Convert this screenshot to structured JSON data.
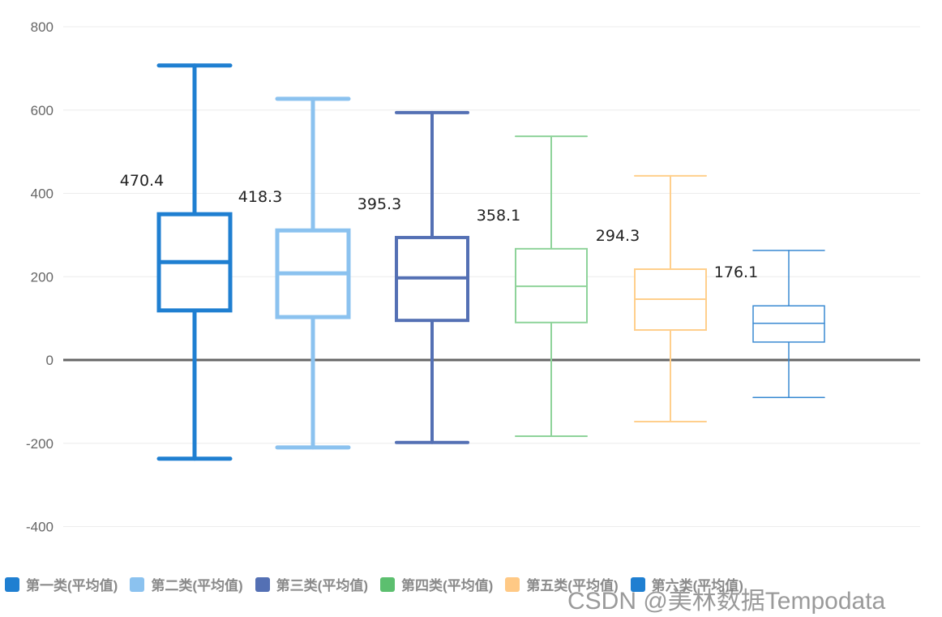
{
  "chart_data": {
    "type": "boxplot",
    "title": "",
    "xlabel": "",
    "ylabel": "",
    "ylim": [
      -400,
      800
    ],
    "yticks": [
      800,
      600,
      400,
      200,
      0,
      -200,
      -400
    ],
    "grid": true,
    "legend_position": "bottom",
    "categories": [
      "第一类(平均值)",
      "第二类(平均值)",
      "第三类(平均值)",
      "第四类(平均值)",
      "第五类(平均值)",
      "第六类(平均值)"
    ],
    "series": [
      {
        "name": "第一类(平均值)",
        "color": "#1f7fd1",
        "stroke": 5,
        "min": -237,
        "q1": 119,
        "median": 235,
        "q3": 350,
        "max": 707,
        "label": "470.4"
      },
      {
        "name": "第二类(平均值)",
        "color": "#8bc2ef",
        "stroke": 5,
        "min": -210,
        "q1": 103,
        "median": 208,
        "q3": 311,
        "max": 627,
        "label": "418.3"
      },
      {
        "name": "第三类(平均值)",
        "color": "#5470b4",
        "stroke": 4,
        "min": -198,
        "q1": 95,
        "median": 197,
        "q3": 294,
        "max": 594,
        "label": "395.3"
      },
      {
        "name": "第四类(平均值)",
        "color": "#8ed39a",
        "stroke": 2,
        "min": -183,
        "q1": 90,
        "median": 177,
        "q3": 267,
        "max": 537,
        "label": "358.1"
      },
      {
        "name": "第五类(平均值)",
        "color": "#ffcf8c",
        "stroke": 2,
        "min": -148,
        "q1": 72,
        "median": 146,
        "q3": 218,
        "max": 442,
        "label": "294.3"
      },
      {
        "name": "第六类(平均值)",
        "color": "#3a8ad2",
        "stroke": 1.5,
        "min": -90,
        "q1": 43,
        "median": 88,
        "q3": 130,
        "max": 263,
        "label": "176.1"
      }
    ]
  },
  "legend": {
    "items": [
      {
        "label": "第一类(平均值)",
        "color": "#1f7fd1"
      },
      {
        "label": "第二类(平均值)",
        "color": "#8bc2ef"
      },
      {
        "label": "第三类(平均值)",
        "color": "#5470b4"
      },
      {
        "label": "第四类(平均值)",
        "color": "#5cbf6f"
      },
      {
        "label": "第五类(平均值)",
        "color": "#ffc985"
      },
      {
        "label": "第六类(平均值)",
        "color": "#1f7fd1"
      }
    ]
  },
  "watermark": "CSDN @美林数据Tempodata"
}
